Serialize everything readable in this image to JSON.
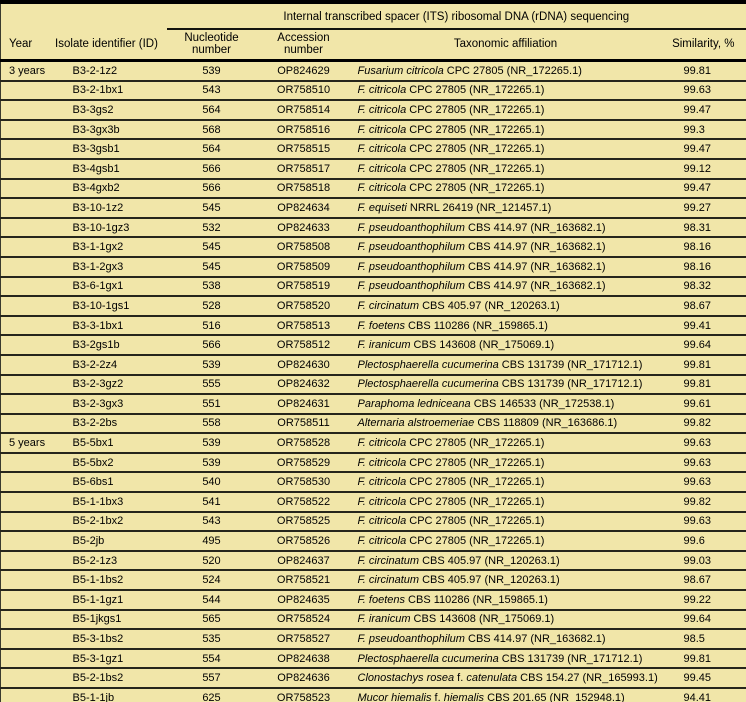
{
  "colors": {
    "background": "#f1e6a9",
    "thick_rule": "#000000",
    "thin_rule": "#26261c",
    "text": "#000000"
  },
  "table": {
    "spanning_header": "Internal transcribed spacer (ITS) ribosomal DNA (rDNA) sequencing",
    "columns": [
      "Year",
      "Isolate identifier (ID)",
      "Nucleotide number",
      "Accession number",
      "Taxonomic affiliation",
      "Similarity, %"
    ],
    "rows": [
      {
        "year": "3 years",
        "id": "B3-2-1z2",
        "nucleotide_number": "539",
        "accession_number": "OP824629",
        "taxon": [
          [
            "Fusarium citricola",
            true
          ],
          [
            " CPC 27805 (NR_172265.1)",
            false
          ]
        ],
        "similarity": "99.81"
      },
      {
        "year": "",
        "id": "B3-2-1bx1",
        "nucleotide_number": "543",
        "accession_number": "OR758510",
        "taxon": [
          [
            "F. citricola",
            true
          ],
          [
            " CPC 27805 (NR_172265.1)",
            false
          ]
        ],
        "similarity": "99.63"
      },
      {
        "year": "",
        "id": "B3-3gs2",
        "nucleotide_number": "564",
        "accession_number": "OR758514",
        "taxon": [
          [
            "F. citricola",
            true
          ],
          [
            " CPC 27805 (NR_172265.1)",
            false
          ]
        ],
        "similarity": "99.47"
      },
      {
        "year": "",
        "id": "B3-3gx3b",
        "nucleotide_number": "568",
        "accession_number": "OR758516",
        "taxon": [
          [
            "F. citricola",
            true
          ],
          [
            " CPC 27805 (NR_172265.1)",
            false
          ]
        ],
        "similarity": "99.3"
      },
      {
        "year": "",
        "id": "B3-3gsb1",
        "nucleotide_number": "564",
        "accession_number": "OR758515",
        "taxon": [
          [
            "F. citricola",
            true
          ],
          [
            " CPC 27805 (NR_172265.1)",
            false
          ]
        ],
        "similarity": "99.47"
      },
      {
        "year": "",
        "id": "B3-4gsb1",
        "nucleotide_number": "566",
        "accession_number": "OR758517",
        "taxon": [
          [
            "F. citricola",
            true
          ],
          [
            " CPC 27805 (NR_172265.1)",
            false
          ]
        ],
        "similarity": "99.12"
      },
      {
        "year": "",
        "id": "B3-4gxb2",
        "nucleotide_number": "566",
        "accession_number": "OR758518",
        "taxon": [
          [
            "F. citricola",
            true
          ],
          [
            " CPC 27805 (NR_172265.1)",
            false
          ]
        ],
        "similarity": "99.47"
      },
      {
        "year": "",
        "id": "B3-10-1z2",
        "nucleotide_number": "545",
        "accession_number": "OP824634",
        "taxon": [
          [
            "F. equiseti",
            true
          ],
          [
            " NRRL 26419 (NR_121457.1)",
            false
          ]
        ],
        "similarity": "99.27"
      },
      {
        "year": "",
        "id": "B3-10-1gz3",
        "nucleotide_number": "532",
        "accession_number": "OP824633",
        "taxon": [
          [
            "F. pseudoanthophilum",
            true
          ],
          [
            " CBS 414.97 (NR_163682.1)",
            false
          ]
        ],
        "similarity": "98.31"
      },
      {
        "year": "",
        "id": "B3-1-1gx2",
        "nucleotide_number": "545",
        "accession_number": "OR758508",
        "taxon": [
          [
            "F. pseudoanthophilum",
            true
          ],
          [
            " CBS 414.97 (NR_163682.1)",
            false
          ]
        ],
        "similarity": "98.16"
      },
      {
        "year": "",
        "id": "B3-1-2gx3",
        "nucleotide_number": "545",
        "accession_number": "OR758509",
        "taxon": [
          [
            "F. pseudoanthophilum",
            true
          ],
          [
            " CBS 414.97 (NR_163682.1)",
            false
          ]
        ],
        "similarity": "98.16"
      },
      {
        "year": "",
        "id": "B3-6-1gx1",
        "nucleotide_number": "538",
        "accession_number": "OR758519",
        "taxon": [
          [
            "F. pseudoanthophilum",
            true
          ],
          [
            " CBS 414.97 (NR_163682.1)",
            false
          ]
        ],
        "similarity": "98.32"
      },
      {
        "year": "",
        "id": "B3-10-1gs1",
        "nucleotide_number": "528",
        "accession_number": "OR758520",
        "taxon": [
          [
            "F. circinatum",
            true
          ],
          [
            " CBS 405.97 (NR_120263.1)",
            false
          ]
        ],
        "similarity": "98.67"
      },
      {
        "year": "",
        "id": "B3-3-1bx1",
        "nucleotide_number": "516",
        "accession_number": "OR758513",
        "taxon": [
          [
            "F. foetens",
            true
          ],
          [
            " CBS 110286 (NR_159865.1)",
            false
          ]
        ],
        "similarity": "99.41"
      },
      {
        "year": "",
        "id": "B3-2gs1b",
        "nucleotide_number": "566",
        "accession_number": "OR758512",
        "taxon": [
          [
            "F. iranicum",
            true
          ],
          [
            " CBS 143608 (NR_175069.1)",
            false
          ]
        ],
        "similarity": "99.64"
      },
      {
        "year": "",
        "id": "B3-2-2z4",
        "nucleotide_number": "539",
        "accession_number": "OP824630",
        "taxon": [
          [
            "Plectosphaerella cucumerina",
            true
          ],
          [
            " CBS 131739 (NR_171712.1)",
            false
          ]
        ],
        "similarity": "99.81"
      },
      {
        "year": "",
        "id": "B3-2-3gz2",
        "nucleotide_number": "555",
        "accession_number": "OP824632",
        "taxon": [
          [
            "Plectosphaerella cucumerina",
            true
          ],
          [
            " CBS 131739 (NR_171712.1)",
            false
          ]
        ],
        "similarity": "99.81"
      },
      {
        "year": "",
        "id": "B3-2-3gx3",
        "nucleotide_number": "551",
        "accession_number": "OP824631",
        "taxon": [
          [
            "Paraphoma ledniceana",
            true
          ],
          [
            " CBS 146533 (NR_172538.1)",
            false
          ]
        ],
        "similarity": "99.61"
      },
      {
        "year": "",
        "id": "B3-2-2bs",
        "nucleotide_number": "558",
        "accession_number": "OR758511",
        "taxon": [
          [
            "Alternaria alstroemeriae",
            true
          ],
          [
            " CBS 118809 (NR_163686.1)",
            false
          ]
        ],
        "similarity": "99.82"
      },
      {
        "year": "5 years",
        "id": "B5-5bx1",
        "nucleotide_number": "539",
        "accession_number": "OR758528",
        "taxon": [
          [
            "F. citricola",
            true
          ],
          [
            " CPC 27805 (NR_172265.1)",
            false
          ]
        ],
        "similarity": "99.63"
      },
      {
        "year": "",
        "id": "B5-5bx2",
        "nucleotide_number": "539",
        "accession_number": "OR758529",
        "taxon": [
          [
            "F. citricola",
            true
          ],
          [
            " CPC 27805 (NR_172265.1)",
            false
          ]
        ],
        "similarity": "99.63"
      },
      {
        "year": "",
        "id": "B5-6bs1",
        "nucleotide_number": "540",
        "accession_number": "OR758530",
        "taxon": [
          [
            "F. citricola",
            true
          ],
          [
            " CPC 27805 (NR_172265.1)",
            false
          ]
        ],
        "similarity": "99.63"
      },
      {
        "year": "",
        "id": "B5-1-1bx3",
        "nucleotide_number": "541",
        "accession_number": "OR758522",
        "taxon": [
          [
            "F. citricola",
            true
          ],
          [
            " CPC 27805 (NR_172265.1)",
            false
          ]
        ],
        "similarity": "99.82"
      },
      {
        "year": "",
        "id": "B5-2-1bx2",
        "nucleotide_number": "543",
        "accession_number": "OR758525",
        "taxon": [
          [
            "F. citricola",
            true
          ],
          [
            " CPC 27805 (NR_172265.1)",
            false
          ]
        ],
        "similarity": "99.63"
      },
      {
        "year": "",
        "id": "B5-2jb",
        "nucleotide_number": "495",
        "accession_number": "OR758526",
        "taxon": [
          [
            "F. citricola",
            true
          ],
          [
            " CPC 27805 (NR_172265.1)",
            false
          ]
        ],
        "similarity": "99.6"
      },
      {
        "year": "",
        "id": "B5-2-1z3",
        "nucleotide_number": "520",
        "accession_number": "OP824637",
        "taxon": [
          [
            "F. circinatum",
            true
          ],
          [
            " CBS 405.97 (NR_120263.1)",
            false
          ]
        ],
        "similarity": "99.03"
      },
      {
        "year": "",
        "id": "B5-1-1bs2",
        "nucleotide_number": "524",
        "accession_number": "OR758521",
        "taxon": [
          [
            "F. circinatum",
            true
          ],
          [
            " CBS 405.97 (NR_120263.1)",
            false
          ]
        ],
        "similarity": "98.67"
      },
      {
        "year": "",
        "id": "B5-1-1gz1",
        "nucleotide_number": "544",
        "accession_number": "OP824635",
        "taxon": [
          [
            "F. foetens",
            true
          ],
          [
            " CBS 110286 (NR_159865.1)",
            false
          ]
        ],
        "similarity": "99.22"
      },
      {
        "year": "",
        "id": "B5-1jkgs1",
        "nucleotide_number": "565",
        "accession_number": "OR758524",
        "taxon": [
          [
            "F. iranicum",
            true
          ],
          [
            " CBS 143608 (NR_175069.1)",
            false
          ]
        ],
        "similarity": "99.64"
      },
      {
        "year": "",
        "id": "B5-3-1bs2",
        "nucleotide_number": "535",
        "accession_number": "OR758527",
        "taxon": [
          [
            "F. pseudoanthophilum",
            true
          ],
          [
            " CBS 414.97 (NR_163682.1)",
            false
          ]
        ],
        "similarity": "98.5"
      },
      {
        "year": "",
        "id": "B5-3-1gz1",
        "nucleotide_number": "554",
        "accession_number": "OP824638",
        "taxon": [
          [
            "Plectosphaerella cucumerina",
            true
          ],
          [
            " CBS 131739 (NR_171712.1)",
            false
          ]
        ],
        "similarity": "99.81"
      },
      {
        "year": "",
        "id": "B5-2-1bs2",
        "nucleotide_number": "557",
        "accession_number": "OP824636",
        "taxon": [
          [
            "Clonostachys rosea",
            true
          ],
          [
            " f. ",
            false
          ],
          [
            "catenulata",
            true
          ],
          [
            " CBS 154.27 (NR_165993.1)",
            false
          ]
        ],
        "similarity": "99.45"
      },
      {
        "year": "",
        "id": "B5-1-1jb",
        "nucleotide_number": "625",
        "accession_number": "OR758523",
        "taxon": [
          [
            "Mucor hiemalis",
            true
          ],
          [
            " f. ",
            false
          ],
          [
            "hiemalis",
            true
          ],
          [
            " CBS 201.65 (NR_152948.1)",
            false
          ]
        ],
        "similarity": "94.41"
      }
    ]
  }
}
